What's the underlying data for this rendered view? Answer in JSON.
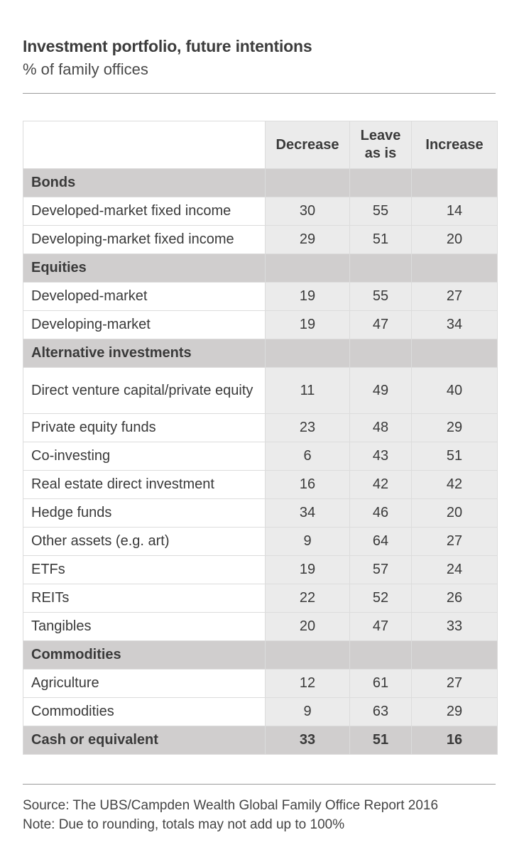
{
  "title": "Investment portfolio, future intentions",
  "subtitle": "% of family offices",
  "footnotes": [
    "Source: The UBS/Campden Wealth Global Family Office Report 2016",
    "Note: Due to rounding, totals may not add up to 100%"
  ],
  "chart_data": {
    "type": "table",
    "columns": [
      "Decrease",
      "Leave as is",
      "Increase"
    ],
    "column_lines": [
      [
        "Decrease"
      ],
      [
        "Leave",
        "as is"
      ],
      [
        "Increase"
      ]
    ],
    "sections": [
      {
        "name": "Bonds",
        "rows": [
          {
            "label": "Developed-market fixed income",
            "values": [
              30,
              55,
              14
            ]
          },
          {
            "label": "Developing-market fixed income",
            "values": [
              29,
              51,
              20
            ]
          }
        ]
      },
      {
        "name": "Equities",
        "rows": [
          {
            "label": "Developed-market",
            "values": [
              19,
              55,
              27
            ]
          },
          {
            "label": "Developing-market",
            "values": [
              19,
              47,
              34
            ]
          }
        ]
      },
      {
        "name": "Alternative investments",
        "rows": [
          {
            "label": "Direct venture capital/private equity",
            "values": [
              11,
              49,
              40
            ]
          },
          {
            "label": "Private equity funds",
            "values": [
              23,
              48,
              29
            ]
          },
          {
            "label": "Co-investing",
            "values": [
              6,
              43,
              51
            ]
          },
          {
            "label": "Real estate direct investment",
            "values": [
              16,
              42,
              42
            ]
          },
          {
            "label": "Hedge funds",
            "values": [
              34,
              46,
              20
            ]
          },
          {
            "label": "Other assets (e.g. art)",
            "values": [
              9,
              64,
              27
            ]
          },
          {
            "label": "ETFs",
            "values": [
              19,
              57,
              24
            ]
          },
          {
            "label": "REITs",
            "values": [
              22,
              52,
              26
            ]
          },
          {
            "label": "Tangibles",
            "values": [
              20,
              47,
              33
            ]
          }
        ]
      },
      {
        "name": "Commodities",
        "rows": [
          {
            "label": "Agriculture",
            "values": [
              12,
              61,
              27
            ]
          },
          {
            "label": "Commodities",
            "values": [
              9,
              63,
              29
            ]
          }
        ]
      }
    ],
    "total_row": {
      "label": "Cash or equivalent",
      "values": [
        33,
        51,
        16
      ]
    }
  }
}
